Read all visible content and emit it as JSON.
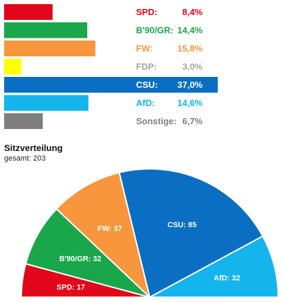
{
  "chart_data": [
    {
      "type": "bar",
      "orientation": "horizontal",
      "categories": [
        "SPD",
        "B'90/GR",
        "FW",
        "FDP",
        "CSU",
        "AfD",
        "Sonstige"
      ],
      "labels": [
        "SPD:",
        "B'90/GR:",
        "FW:",
        "FDP:",
        "CSU:",
        "AfD:",
        "Sonstige:"
      ],
      "value_labels": [
        "8,4%",
        "14,4%",
        "15,8%",
        "3,0%",
        "37,0%",
        "14,6%",
        "6,7%"
      ],
      "values": [
        8.4,
        14.4,
        15.8,
        3.0,
        37.0,
        14.6,
        6.7
      ],
      "colors": [
        "#e2061a",
        "#1aa64a",
        "#f7963c",
        "#ffff00",
        "#0a6fc2",
        "#14b4ed",
        "#7f7f7f"
      ],
      "label_colors": [
        "#e2061a",
        "#1aa64a",
        "#f7963c",
        "#a6a6a6",
        "#ffffff",
        "#14b4ed",
        "#7f7f7f"
      ],
      "highlight": "CSU",
      "highlight_color": "#0a6fc2",
      "xlim": [
        0,
        37.0
      ]
    },
    {
      "type": "pie",
      "subtype": "semicircle",
      "title": "Sitzverteilung",
      "subtitle": "gesamt: 203",
      "categories": [
        "SPD",
        "B'90/GR",
        "FW",
        "CSU",
        "AfD"
      ],
      "values": [
        17,
        32,
        37,
        85,
        32
      ],
      "labels": [
        "SPD:  17",
        "B'90/GR: 32",
        "FW: 37",
        "CSU: 85",
        "AfD: 32"
      ],
      "colors": [
        "#e2061a",
        "#1aa64a",
        "#f7963c",
        "#0a6fc2",
        "#14b4ed"
      ],
      "total": 203
    }
  ]
}
